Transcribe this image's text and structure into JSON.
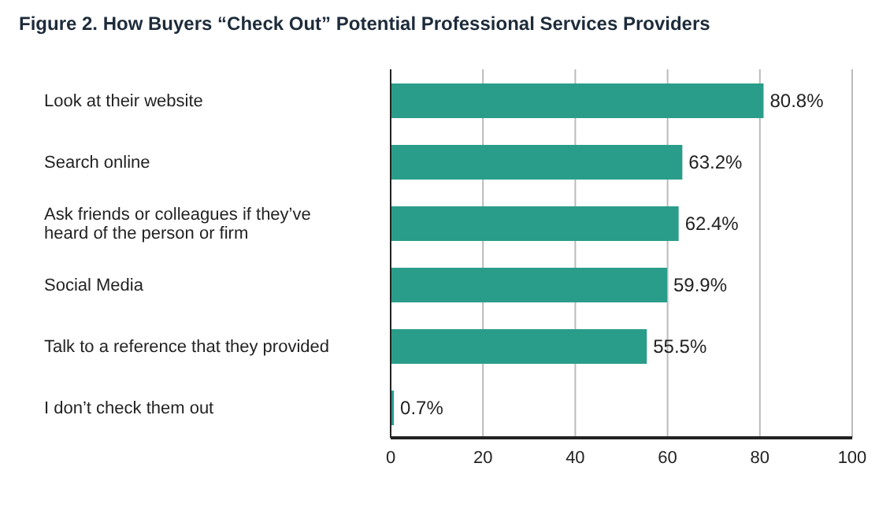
{
  "chart_data": {
    "type": "bar",
    "orientation": "horizontal",
    "title": "Figure 2. How Buyers “Check Out” Potential Professional Services Providers",
    "categories": [
      "Look at their website",
      "Search online",
      "Ask friends or colleagues if they’ve heard of the person or firm",
      "Social Media",
      "Talk to a reference that they provided",
      "I don’t check them out"
    ],
    "values": [
      80.8,
      63.2,
      62.4,
      59.9,
      55.5,
      0.7
    ],
    "value_labels": [
      "80.8%",
      "63.2%",
      "62.4%",
      "59.9%",
      "55.5%",
      "0.7%"
    ],
    "color": "#2a9d8a",
    "xlim": [
      0,
      100
    ],
    "xticks": [
      0,
      20,
      40,
      60,
      80,
      100
    ],
    "grid": "x",
    "legend": false
  }
}
